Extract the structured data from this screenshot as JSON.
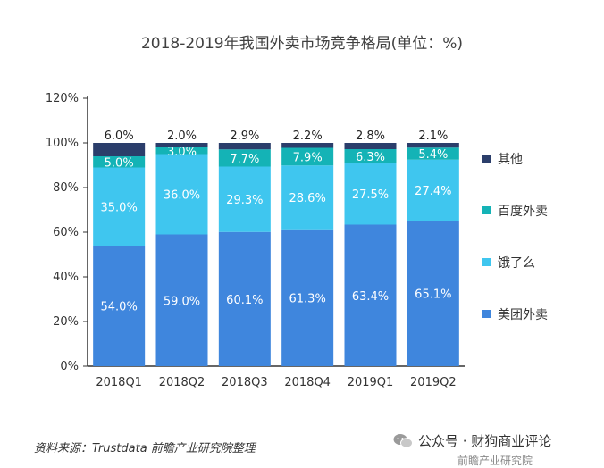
{
  "title": "2018-2019年我国外卖市场竞争格局(单位：%)",
  "source": "资料来源：Trustdata 前瞻产业研究院整理",
  "wechat_label": "公众号 · 财狗商业评论",
  "watermark": "前瞻产业研究院",
  "colors": {
    "美团外卖": "#3f86dd",
    "饿了么": "#3fc6ef",
    "百度外卖": "#14b3b6",
    "其他": "#2b3e6b"
  },
  "chart_data": {
    "type": "bar",
    "stacked": true,
    "categories": [
      "2018Q1",
      "2018Q2",
      "2018Q3",
      "2018Q4",
      "2019Q1",
      "2019Q2"
    ],
    "series": [
      {
        "name": "美团外卖",
        "values": [
          54.0,
          59.0,
          60.1,
          61.3,
          63.4,
          65.1
        ],
        "labels": [
          "54.0%",
          "59.0%",
          "60.1%",
          "61.3%",
          "63.4%",
          "65.1%"
        ]
      },
      {
        "name": "饿了么",
        "values": [
          35.0,
          36.0,
          29.3,
          28.6,
          27.5,
          27.4
        ],
        "labels": [
          "35.0%",
          "36.0%",
          "29.3%",
          "28.6%",
          "27.5%",
          "27.4%"
        ]
      },
      {
        "name": "百度外卖",
        "values": [
          5.0,
          3.0,
          7.7,
          7.9,
          6.3,
          5.4
        ],
        "labels": [
          "5.0%",
          "3.0%",
          "7.7%",
          "7.9%",
          "6.3%",
          "5.4%"
        ]
      },
      {
        "name": "其他",
        "values": [
          6.0,
          2.0,
          2.9,
          2.2,
          2.8,
          2.1
        ],
        "labels": [
          "6.0%",
          "2.0%",
          "2.9%",
          "2.2%",
          "2.8%",
          "2.1%"
        ]
      }
    ],
    "ylim": [
      0,
      120
    ],
    "yticks": [
      0,
      20,
      40,
      60,
      80,
      100,
      120
    ],
    "ytick_labels": [
      "0%",
      "20%",
      "40%",
      "60%",
      "80%",
      "100%",
      "120%"
    ],
    "legend_order": [
      "其他",
      "百度外卖",
      "饿了么",
      "美团外卖"
    ],
    "legend_position": "right",
    "grid": false
  }
}
